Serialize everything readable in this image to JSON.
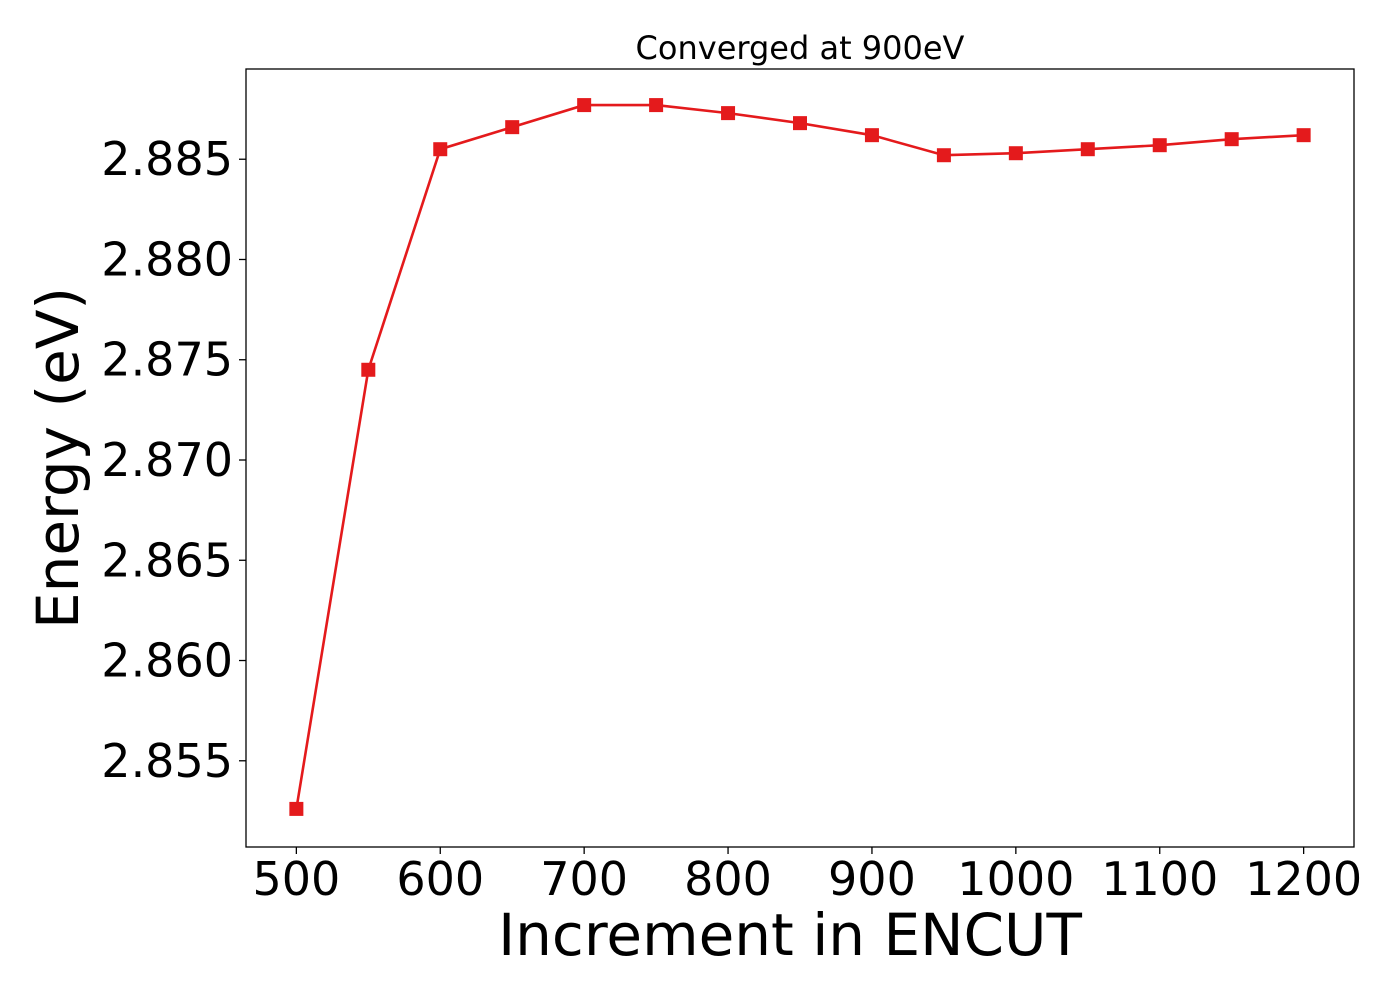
{
  "chart_data": {
    "type": "line",
    "title": "Converged at 900eV",
    "xlabel": "Increment in ENCUT",
    "ylabel": "Energy (eV)",
    "xlim": [
      465,
      1235
    ],
    "ylim": [
      2.8507,
      2.8895
    ],
    "xticks": [
      500,
      600,
      700,
      800,
      900,
      1000,
      1100,
      1200
    ],
    "yticks": [
      2.855,
      2.86,
      2.865,
      2.87,
      2.875,
      2.88,
      2.885
    ],
    "ytick_labels": [
      "2.855",
      "2.860",
      "2.865",
      "2.870",
      "2.875",
      "2.880",
      "2.885"
    ],
    "grid": false,
    "legend": "none",
    "series": [
      {
        "color": "#e41a1c",
        "marker": "square",
        "x": [
          500,
          550,
          600,
          650,
          700,
          750,
          800,
          850,
          900,
          950,
          1000,
          1050,
          1100,
          1150,
          1200
        ],
        "y": [
          2.8526,
          2.8745,
          2.8855,
          2.8866,
          2.8877,
          2.8877,
          2.8873,
          2.8868,
          2.8862,
          2.8852,
          2.8853,
          2.8855,
          2.8857,
          2.886,
          2.8862
        ]
      }
    ]
  }
}
